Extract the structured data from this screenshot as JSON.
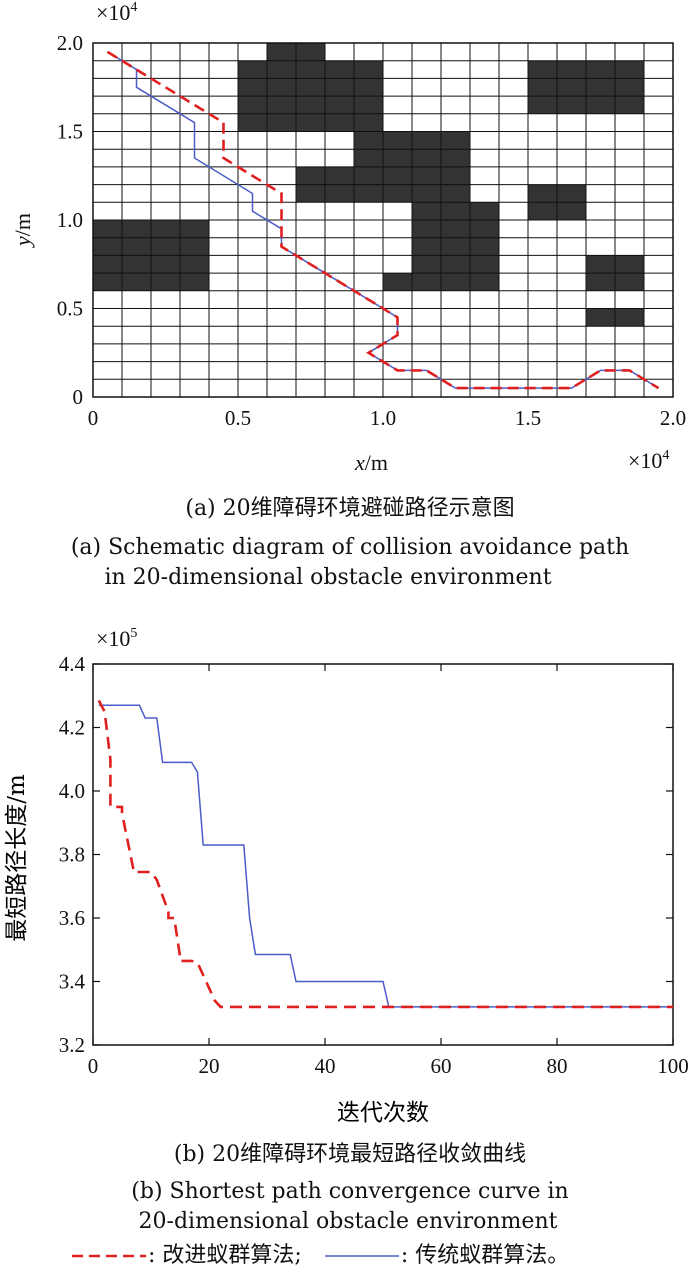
{
  "chart_data": [
    {
      "type": "line",
      "id": "a",
      "xlabel_var": "x",
      "xlabel_unit": "/m",
      "ylabel_var": "y",
      "ylabel_unit": "/m",
      "xlim": [
        0,
        2.0
      ],
      "ylim": [
        0,
        2.0
      ],
      "x_ticks": [
        "0",
        "0.5",
        "1.0",
        "1.5",
        "2.0"
      ],
      "y_ticks": [
        "0",
        "0.5",
        "1.0",
        "1.5",
        "2.0"
      ],
      "x_multiplier": "×10",
      "x_multiplier_exp": "4",
      "y_multiplier": "×10",
      "y_multiplier_exp": "4",
      "grid_cells": 20,
      "obstacles": [
        [
          6,
          0
        ],
        [
          7,
          0
        ],
        [
          5,
          1
        ],
        [
          6,
          1
        ],
        [
          7,
          1
        ],
        [
          8,
          1
        ],
        [
          9,
          1
        ],
        [
          15,
          1
        ],
        [
          16,
          1
        ],
        [
          17,
          1
        ],
        [
          18,
          1
        ],
        [
          5,
          2
        ],
        [
          6,
          2
        ],
        [
          7,
          2
        ],
        [
          8,
          2
        ],
        [
          9,
          2
        ],
        [
          15,
          2
        ],
        [
          16,
          2
        ],
        [
          17,
          2
        ],
        [
          18,
          2
        ],
        [
          5,
          3
        ],
        [
          6,
          3
        ],
        [
          7,
          3
        ],
        [
          8,
          3
        ],
        [
          9,
          3
        ],
        [
          15,
          3
        ],
        [
          16,
          3
        ],
        [
          17,
          3
        ],
        [
          18,
          3
        ],
        [
          5,
          4
        ],
        [
          6,
          4
        ],
        [
          7,
          4
        ],
        [
          8,
          4
        ],
        [
          9,
          4
        ],
        [
          9,
          5
        ],
        [
          10,
          5
        ],
        [
          11,
          5
        ],
        [
          12,
          5
        ],
        [
          9,
          6
        ],
        [
          10,
          6
        ],
        [
          11,
          6
        ],
        [
          12,
          6
        ],
        [
          7,
          7
        ],
        [
          8,
          7
        ],
        [
          9,
          7
        ],
        [
          10,
          7
        ],
        [
          11,
          7
        ],
        [
          12,
          7
        ],
        [
          7,
          8
        ],
        [
          8,
          8
        ],
        [
          9,
          8
        ],
        [
          10,
          8
        ],
        [
          11,
          8
        ],
        [
          12,
          8
        ],
        [
          15,
          8
        ],
        [
          16,
          8
        ],
        [
          11,
          9
        ],
        [
          12,
          9
        ],
        [
          13,
          9
        ],
        [
          15,
          9
        ],
        [
          16,
          9
        ],
        [
          0,
          10
        ],
        [
          1,
          10
        ],
        [
          2,
          10
        ],
        [
          3,
          10
        ],
        [
          11,
          10
        ],
        [
          12,
          10
        ],
        [
          13,
          10
        ],
        [
          0,
          11
        ],
        [
          1,
          11
        ],
        [
          2,
          11
        ],
        [
          3,
          11
        ],
        [
          11,
          11
        ],
        [
          12,
          11
        ],
        [
          13,
          11
        ],
        [
          0,
          12
        ],
        [
          1,
          12
        ],
        [
          2,
          12
        ],
        [
          3,
          12
        ],
        [
          11,
          12
        ],
        [
          12,
          12
        ],
        [
          13,
          12
        ],
        [
          17,
          12
        ],
        [
          18,
          12
        ],
        [
          0,
          13
        ],
        [
          1,
          13
        ],
        [
          2,
          13
        ],
        [
          3,
          13
        ],
        [
          10,
          13
        ],
        [
          11,
          13
        ],
        [
          12,
          13
        ],
        [
          13,
          13
        ],
        [
          17,
          13
        ],
        [
          18,
          13
        ],
        [
          17,
          15
        ],
        [
          18,
          15
        ]
      ],
      "series": [
        {
          "key": "improved",
          "color": "#e02020",
          "dash": true,
          "x": [
            0.05,
            0.15,
            0.45,
            0.45,
            0.55,
            0.65,
            0.65,
            0.75,
            0.95,
            1.05,
            1.05,
            0.95,
            1.05,
            1.15,
            1.25,
            1.65,
            1.75,
            1.85,
            1.95
          ],
          "y": [
            1.95,
            1.85,
            1.55,
            1.35,
            1.25,
            1.15,
            0.85,
            0.75,
            0.55,
            0.45,
            0.35,
            0.25,
            0.15,
            0.15,
            0.05,
            0.05,
            0.15,
            0.15,
            0.05
          ]
        },
        {
          "key": "traditional",
          "color": "#4b5cc8",
          "dash": false,
          "x": [
            0.05,
            0.15,
            0.15,
            0.35,
            0.35,
            0.55,
            0.55,
            0.65,
            0.65,
            0.75,
            0.95,
            1.05,
            1.05,
            0.95,
            1.05,
            1.15,
            1.25,
            1.65,
            1.75,
            1.85,
            1.95
          ],
          "y": [
            1.95,
            1.85,
            1.75,
            1.55,
            1.35,
            1.15,
            1.05,
            0.95,
            0.85,
            0.75,
            0.55,
            0.45,
            0.35,
            0.25,
            0.15,
            0.15,
            0.05,
            0.05,
            0.15,
            0.15,
            0.05
          ]
        }
      ]
    },
    {
      "type": "line",
      "id": "b",
      "xlabel": "迭代次数",
      "ylabel": "最短路径长度/m",
      "xlim": [
        0,
        100
      ],
      "ylim": [
        3.2,
        4.4
      ],
      "x_ticks": [
        0,
        20,
        40,
        60,
        80,
        100
      ],
      "y_ticks": [
        3.2,
        3.4,
        3.6,
        3.8,
        4.0,
        4.2,
        4.4
      ],
      "y_multiplier": "×10",
      "y_multiplier_exp": "5",
      "series": [
        {
          "key": "improved",
          "color": "#e02020",
          "dash": true,
          "x": [
            1,
            2,
            3,
            3,
            5,
            5,
            7,
            7,
            10,
            11,
            13,
            13,
            14,
            15,
            15,
            17,
            18,
            21,
            22,
            100
          ],
          "y": [
            4.285,
            4.25,
            4.1,
            3.95,
            3.95,
            3.93,
            3.75,
            3.745,
            3.745,
            3.72,
            3.62,
            3.6,
            3.6,
            3.48,
            3.465,
            3.465,
            3.46,
            3.34,
            3.32,
            3.32
          ]
        },
        {
          "key": "traditional",
          "color": "#4b5cc8",
          "dash": false,
          "x": [
            1,
            8,
            9,
            11,
            12,
            13,
            17,
            18,
            19,
            26,
            27,
            28,
            34,
            35,
            50,
            51,
            100
          ],
          "y": [
            4.27,
            4.27,
            4.23,
            4.23,
            4.09,
            4.09,
            4.09,
            4.06,
            3.83,
            3.83,
            3.6,
            3.485,
            3.485,
            3.4,
            3.4,
            3.32,
            3.32
          ]
        }
      ]
    }
  ],
  "captions": {
    "a_cn": "(a) 20维障碍环境避碰路径示意图",
    "a_en_1": "(a) Schematic diagram of collision avoidance path",
    "a_en_2": "in 20-dimensional obstacle environment",
    "b_cn": "(b) 20维障碍环境最短路径收敛曲线",
    "b_en_1": "(b) Shortest path convergence curve in",
    "b_en_2": "20-dimensional obstacle environment"
  },
  "legend": {
    "improved": ": 改进蚁群算法;",
    "traditional": ": 传统蚁群算法。"
  }
}
